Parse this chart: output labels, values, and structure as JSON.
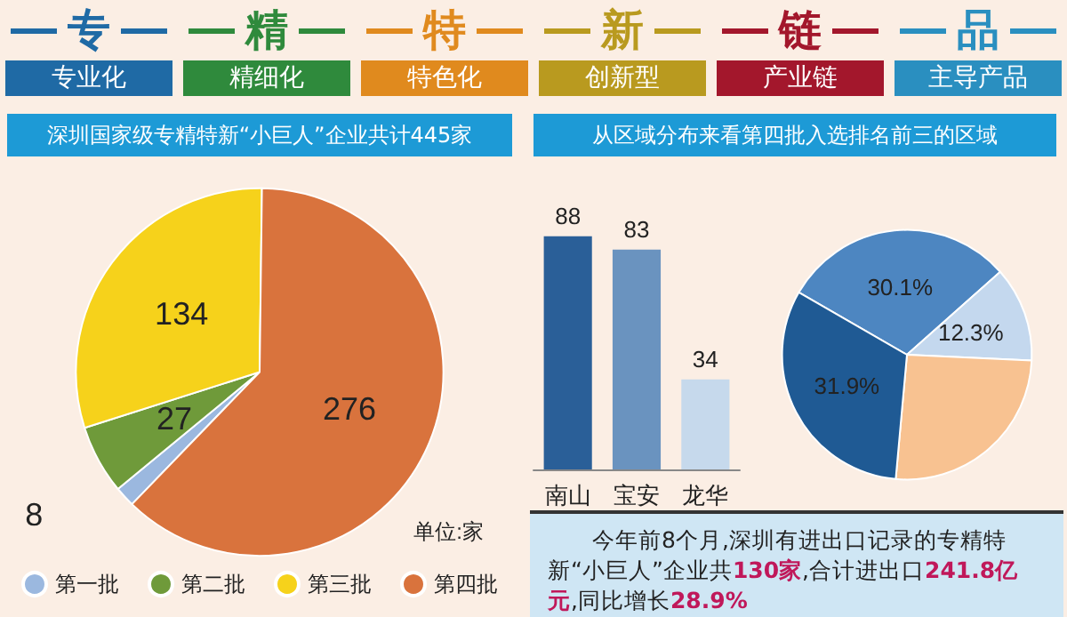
{
  "chart_data": [
    {
      "type": "other",
      "annotations": [
        "专",
        "精",
        "特",
        "新",
        "链",
        "品",
        "专业化",
        "精细化",
        "特色化",
        "创新型",
        "产业链",
        "主导产品"
      ]
    },
    {
      "type": "pie",
      "title": "深圳国家级专精特新“小巨人”企业共计445家",
      "categories": [
        "第一批",
        "第二批",
        "第三批",
        "第四批"
      ],
      "values": [
        8,
        27,
        134,
        276
      ],
      "colors": [
        "#9bb8df",
        "#6f9a3a",
        "#f6d21b",
        "#d9733d"
      ],
      "data_labels": true,
      "legend": "bottom",
      "annotations": [
        "单位:家"
      ]
    },
    {
      "type": "bar",
      "title": "从区域分布来看第四批入选排名前三的区域",
      "categories": [
        "南山",
        "宝安",
        "龙华"
      ],
      "values": [
        88,
        83,
        34
      ],
      "colors": [
        "#2a5f98",
        "#6a93bf",
        "#c6d9ec"
      ],
      "data_labels": true
    },
    {
      "type": "pie",
      "categories": [
        null,
        null,
        null,
        null
      ],
      "values": [
        30.1,
        12.3,
        25.7,
        31.9
      ],
      "colors": [
        "#4d86c1",
        "#c4d8ee",
        "#f8c291",
        "#1f5a94"
      ],
      "value_labels": [
        "30.1%",
        "12.3%",
        null,
        "31.9%"
      ]
    },
    {
      "type": "other",
      "annotations": [
        "今年前8个月,深圳有进出口记录的专精特新“小巨人”企业共",
        "130家",
        ",合计进出口",
        "241.8亿元",
        ",同比增长",
        "28.9%"
      ]
    }
  ]
}
